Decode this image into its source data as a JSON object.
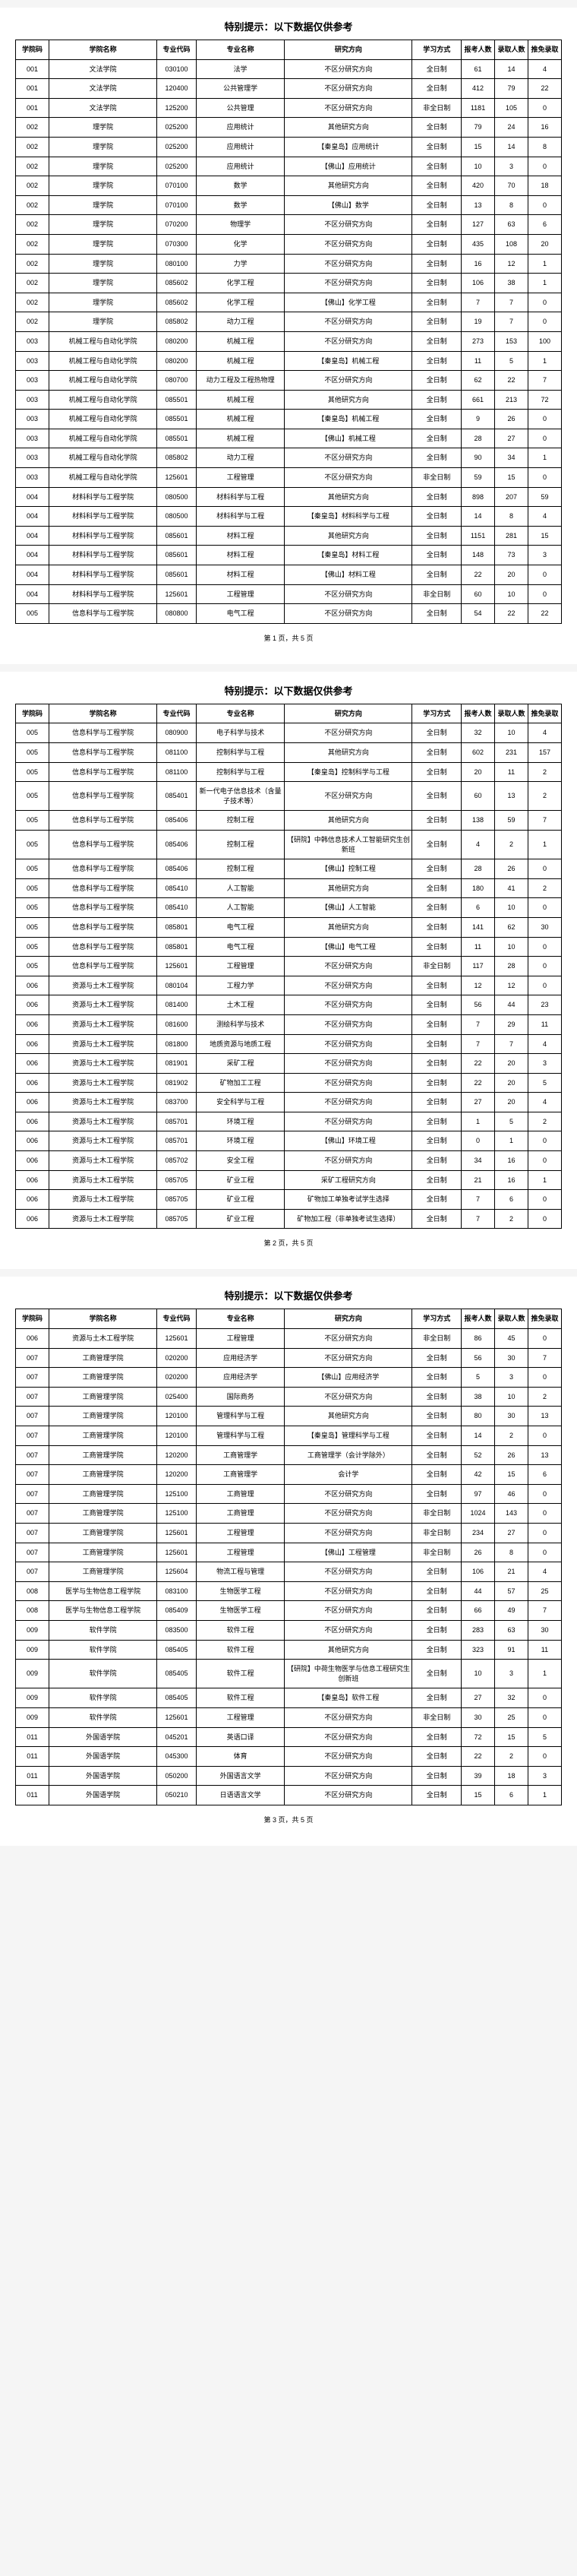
{
  "warning": "特别提示：以下数据仅供参考",
  "headers": [
    "学院码",
    "学院名称",
    "专业代码",
    "专业名称",
    "研究方向",
    "学习方式",
    "报考人数",
    "录取人数",
    "推免录取"
  ],
  "footer_prefix": "第",
  "footer_mid": "页，共",
  "footer_suffix": "页",
  "total_pages": 5,
  "pages": [
    {
      "page_num": 1,
      "rows": [
        [
          "001",
          "文法学院",
          "030100",
          "法学",
          "不区分研究方向",
          "全日制",
          "61",
          "14",
          "4"
        ],
        [
          "001",
          "文法学院",
          "120400",
          "公共管理学",
          "不区分研究方向",
          "全日制",
          "412",
          "79",
          "22"
        ],
        [
          "001",
          "文法学院",
          "125200",
          "公共管理",
          "不区分研究方向",
          "非全日制",
          "1181",
          "105",
          "0"
        ],
        [
          "002",
          "理学院",
          "025200",
          "应用统计",
          "其他研究方向",
          "全日制",
          "79",
          "24",
          "16"
        ],
        [
          "002",
          "理学院",
          "025200",
          "应用统计",
          "【秦皇岛】应用统计",
          "全日制",
          "15",
          "14",
          "8"
        ],
        [
          "002",
          "理学院",
          "025200",
          "应用统计",
          "【佛山】应用统计",
          "全日制",
          "10",
          "3",
          "0"
        ],
        [
          "002",
          "理学院",
          "070100",
          "数学",
          "其他研究方向",
          "全日制",
          "420",
          "70",
          "18"
        ],
        [
          "002",
          "理学院",
          "070100",
          "数学",
          "【佛山】数学",
          "全日制",
          "13",
          "8",
          "0"
        ],
        [
          "002",
          "理学院",
          "070200",
          "物理学",
          "不区分研究方向",
          "全日制",
          "127",
          "63",
          "6"
        ],
        [
          "002",
          "理学院",
          "070300",
          "化学",
          "不区分研究方向",
          "全日制",
          "435",
          "108",
          "20"
        ],
        [
          "002",
          "理学院",
          "080100",
          "力学",
          "不区分研究方向",
          "全日制",
          "16",
          "12",
          "1"
        ],
        [
          "002",
          "理学院",
          "085602",
          "化学工程",
          "不区分研究方向",
          "全日制",
          "106",
          "38",
          "1"
        ],
        [
          "002",
          "理学院",
          "085602",
          "化学工程",
          "【佛山】化学工程",
          "全日制",
          "7",
          "7",
          "0"
        ],
        [
          "002",
          "理学院",
          "085802",
          "动力工程",
          "不区分研究方向",
          "全日制",
          "19",
          "7",
          "0"
        ],
        [
          "003",
          "机械工程与自动化学院",
          "080200",
          "机械工程",
          "不区分研究方向",
          "全日制",
          "273",
          "153",
          "100"
        ],
        [
          "003",
          "机械工程与自动化学院",
          "080200",
          "机械工程",
          "【秦皇岛】机械工程",
          "全日制",
          "11",
          "5",
          "1"
        ],
        [
          "003",
          "机械工程与自动化学院",
          "080700",
          "动力工程及工程热物理",
          "不区分研究方向",
          "全日制",
          "62",
          "22",
          "7"
        ],
        [
          "003",
          "机械工程与自动化学院",
          "085501",
          "机械工程",
          "其他研究方向",
          "全日制",
          "661",
          "213",
          "72"
        ],
        [
          "003",
          "机械工程与自动化学院",
          "085501",
          "机械工程",
          "【秦皇岛】机械工程",
          "全日制",
          "9",
          "26",
          "0"
        ],
        [
          "003",
          "机械工程与自动化学院",
          "085501",
          "机械工程",
          "【佛山】机械工程",
          "全日制",
          "28",
          "27",
          "0"
        ],
        [
          "003",
          "机械工程与自动化学院",
          "085802",
          "动力工程",
          "不区分研究方向",
          "全日制",
          "90",
          "34",
          "1"
        ],
        [
          "003",
          "机械工程与自动化学院",
          "125601",
          "工程管理",
          "不区分研究方向",
          "非全日制",
          "59",
          "15",
          "0"
        ],
        [
          "004",
          "材料科学与工程学院",
          "080500",
          "材料科学与工程",
          "其他研究方向",
          "全日制",
          "898",
          "207",
          "59"
        ],
        [
          "004",
          "材料科学与工程学院",
          "080500",
          "材料科学与工程",
          "【秦皇岛】材料科学与工程",
          "全日制",
          "14",
          "8",
          "4"
        ],
        [
          "004",
          "材料科学与工程学院",
          "085601",
          "材料工程",
          "其他研究方向",
          "全日制",
          "1151",
          "281",
          "15"
        ],
        [
          "004",
          "材料科学与工程学院",
          "085601",
          "材料工程",
          "【秦皇岛】材料工程",
          "全日制",
          "148",
          "73",
          "3"
        ],
        [
          "004",
          "材料科学与工程学院",
          "085601",
          "材料工程",
          "【佛山】材料工程",
          "全日制",
          "22",
          "20",
          "0"
        ],
        [
          "004",
          "材料科学与工程学院",
          "125601",
          "工程管理",
          "不区分研究方向",
          "非全日制",
          "60",
          "10",
          "0"
        ],
        [
          "005",
          "信息科学与工程学院",
          "080800",
          "电气工程",
          "不区分研究方向",
          "全日制",
          "54",
          "22",
          "22"
        ]
      ]
    },
    {
      "page_num": 2,
      "rows": [
        [
          "005",
          "信息科学与工程学院",
          "080900",
          "电子科学与技术",
          "不区分研究方向",
          "全日制",
          "32",
          "10",
          "4"
        ],
        [
          "005",
          "信息科学与工程学院",
          "081100",
          "控制科学与工程",
          "其他研究方向",
          "全日制",
          "602",
          "231",
          "157"
        ],
        [
          "005",
          "信息科学与工程学院",
          "081100",
          "控制科学与工程",
          "【秦皇岛】控制科学与工程",
          "全日制",
          "20",
          "11",
          "2"
        ],
        [
          "005",
          "信息科学与工程学院",
          "085401",
          "新一代电子信息技术（含量子技术等）",
          "不区分研究方向",
          "全日制",
          "60",
          "13",
          "2"
        ],
        [
          "005",
          "信息科学与工程学院",
          "085406",
          "控制工程",
          "其他研究方向",
          "全日制",
          "138",
          "59",
          "7"
        ],
        [
          "005",
          "信息科学与工程学院",
          "085406",
          "控制工程",
          "【研院】中韩信息技术人工智能研究生创新班",
          "全日制",
          "4",
          "2",
          "1"
        ],
        [
          "005",
          "信息科学与工程学院",
          "085406",
          "控制工程",
          "【佛山】控制工程",
          "全日制",
          "28",
          "26",
          "0"
        ],
        [
          "005",
          "信息科学与工程学院",
          "085410",
          "人工智能",
          "其他研究方向",
          "全日制",
          "180",
          "41",
          "2"
        ],
        [
          "005",
          "信息科学与工程学院",
          "085410",
          "人工智能",
          "【佛山】人工智能",
          "全日制",
          "6",
          "10",
          "0"
        ],
        [
          "005",
          "信息科学与工程学院",
          "085801",
          "电气工程",
          "其他研究方向",
          "全日制",
          "141",
          "62",
          "30"
        ],
        [
          "005",
          "信息科学与工程学院",
          "085801",
          "电气工程",
          "【佛山】电气工程",
          "全日制",
          "11",
          "10",
          "0"
        ],
        [
          "005",
          "信息科学与工程学院",
          "125601",
          "工程管理",
          "不区分研究方向",
          "非全日制",
          "117",
          "28",
          "0"
        ],
        [
          "006",
          "资源与土木工程学院",
          "080104",
          "工程力学",
          "不区分研究方向",
          "全日制",
          "12",
          "12",
          "0"
        ],
        [
          "006",
          "资源与土木工程学院",
          "081400",
          "土木工程",
          "不区分研究方向",
          "全日制",
          "56",
          "44",
          "23"
        ],
        [
          "006",
          "资源与土木工程学院",
          "081600",
          "测绘科学与技术",
          "不区分研究方向",
          "全日制",
          "7",
          "29",
          "11"
        ],
        [
          "006",
          "资源与土木工程学院",
          "081800",
          "地质资源与地质工程",
          "不区分研究方向",
          "全日制",
          "7",
          "7",
          "4"
        ],
        [
          "006",
          "资源与土木工程学院",
          "081901",
          "采矿工程",
          "不区分研究方向",
          "全日制",
          "22",
          "20",
          "3"
        ],
        [
          "006",
          "资源与土木工程学院",
          "081902",
          "矿物加工工程",
          "不区分研究方向",
          "全日制",
          "22",
          "20",
          "5"
        ],
        [
          "006",
          "资源与土木工程学院",
          "083700",
          "安全科学与工程",
          "不区分研究方向",
          "全日制",
          "27",
          "20",
          "4"
        ],
        [
          "006",
          "资源与土木工程学院",
          "085701",
          "环境工程",
          "不区分研究方向",
          "全日制",
          "1",
          "5",
          "2"
        ],
        [
          "006",
          "资源与土木工程学院",
          "085701",
          "环境工程",
          "【佛山】环境工程",
          "全日制",
          "0",
          "1",
          "0"
        ],
        [
          "006",
          "资源与土木工程学院",
          "085702",
          "安全工程",
          "不区分研究方向",
          "全日制",
          "34",
          "16",
          "0"
        ],
        [
          "006",
          "资源与土木工程学院",
          "085705",
          "矿业工程",
          "采矿工程研究方向",
          "全日制",
          "21",
          "16",
          "1"
        ],
        [
          "006",
          "资源与土木工程学院",
          "085705",
          "矿业工程",
          "矿物加工单独考试学生选择",
          "全日制",
          "7",
          "6",
          "0"
        ],
        [
          "006",
          "资源与土木工程学院",
          "085705",
          "矿业工程",
          "矿物加工程（非单独考试生选择）",
          "全日制",
          "7",
          "2",
          "0"
        ]
      ]
    },
    {
      "page_num": 3,
      "rows": [
        [
          "006",
          "资源与土木工程学院",
          "125601",
          "工程管理",
          "不区分研究方向",
          "非全日制",
          "86",
          "45",
          "0"
        ],
        [
          "007",
          "工商管理学院",
          "020200",
          "应用经济学",
          "不区分研究方向",
          "全日制",
          "56",
          "30",
          "7"
        ],
        [
          "007",
          "工商管理学院",
          "020200",
          "应用经济学",
          "【佛山】应用经济学",
          "全日制",
          "5",
          "3",
          "0"
        ],
        [
          "007",
          "工商管理学院",
          "025400",
          "国际商务",
          "不区分研究方向",
          "全日制",
          "38",
          "10",
          "2"
        ],
        [
          "007",
          "工商管理学院",
          "120100",
          "管理科学与工程",
          "其他研究方向",
          "全日制",
          "80",
          "30",
          "13"
        ],
        [
          "007",
          "工商管理学院",
          "120100",
          "管理科学与工程",
          "【秦皇岛】管理科学与工程",
          "全日制",
          "14",
          "2",
          "0"
        ],
        [
          "007",
          "工商管理学院",
          "120200",
          "工商管理学",
          "工商管理学（会计学除外）",
          "全日制",
          "52",
          "26",
          "13"
        ],
        [
          "007",
          "工商管理学院",
          "120200",
          "工商管理学",
          "会计学",
          "全日制",
          "42",
          "15",
          "6"
        ],
        [
          "007",
          "工商管理学院",
          "125100",
          "工商管理",
          "不区分研究方向",
          "全日制",
          "97",
          "46",
          "0"
        ],
        [
          "007",
          "工商管理学院",
          "125100",
          "工商管理",
          "不区分研究方向",
          "非全日制",
          "1024",
          "143",
          "0"
        ],
        [
          "007",
          "工商管理学院",
          "125601",
          "工程管理",
          "不区分研究方向",
          "非全日制",
          "234",
          "27",
          "0"
        ],
        [
          "007",
          "工商管理学院",
          "125601",
          "工程管理",
          "【佛山】工程管理",
          "非全日制",
          "26",
          "8",
          "0"
        ],
        [
          "007",
          "工商管理学院",
          "125604",
          "物流工程与管理",
          "不区分研究方向",
          "全日制",
          "106",
          "21",
          "4"
        ],
        [
          "008",
          "医学与生物信息工程学院",
          "083100",
          "生物医学工程",
          "不区分研究方向",
          "全日制",
          "44",
          "57",
          "25"
        ],
        [
          "008",
          "医学与生物信息工程学院",
          "085409",
          "生物医学工程",
          "不区分研究方向",
          "全日制",
          "66",
          "49",
          "7"
        ],
        [
          "009",
          "软件学院",
          "083500",
          "软件工程",
          "不区分研究方向",
          "全日制",
          "283",
          "63",
          "30"
        ],
        [
          "009",
          "软件学院",
          "085405",
          "软件工程",
          "其他研究方向",
          "全日制",
          "323",
          "91",
          "11"
        ],
        [
          "009",
          "软件学院",
          "085405",
          "软件工程",
          "【研院】中荷生物医学与信息工程研究生创新班",
          "全日制",
          "10",
          "3",
          "1"
        ],
        [
          "009",
          "软件学院",
          "085405",
          "软件工程",
          "【秦皇岛】软件工程",
          "全日制",
          "27",
          "32",
          "0"
        ],
        [
          "009",
          "软件学院",
          "125601",
          "工程管理",
          "不区分研究方向",
          "非全日制",
          "30",
          "25",
          "0"
        ],
        [
          "011",
          "外国语学院",
          "045201",
          "英语口译",
          "不区分研究方向",
          "全日制",
          "72",
          "15",
          "5"
        ],
        [
          "011",
          "外国语学院",
          "045300",
          "体育",
          "不区分研究方向",
          "全日制",
          "22",
          "2",
          "0"
        ],
        [
          "011",
          "外国语学院",
          "050200",
          "外国语言文学",
          "不区分研究方向",
          "全日制",
          "39",
          "18",
          "3"
        ],
        [
          "011",
          "外国语学院",
          "050210",
          "日语语言文学",
          "不区分研究方向",
          "全日制",
          "15",
          "6",
          "1"
        ]
      ]
    }
  ]
}
